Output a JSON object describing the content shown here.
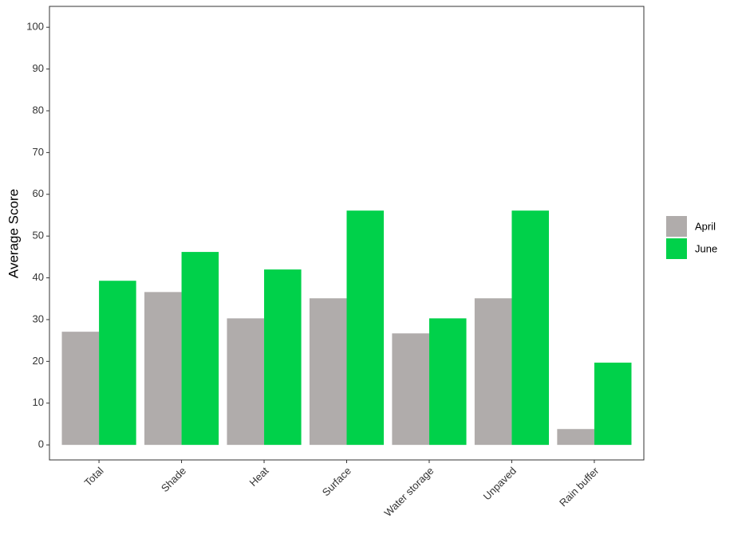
{
  "chart_data": {
    "type": "bar",
    "y_label": "Average Score",
    "categories": [
      "Total",
      "Shade",
      "Heat",
      "Surface",
      "Water storage",
      "Unpaved",
      "Rain buffer"
    ],
    "series": [
      {
        "name": "April",
        "color": "#b0acab",
        "values": [
          27.1,
          36.6,
          30.3,
          35.1,
          26.7,
          35.1,
          3.8
        ]
      },
      {
        "name": "June",
        "color": "#00d14a",
        "values": [
          39.3,
          46.2,
          42.0,
          56.1,
          30.3,
          56.1,
          19.7
        ]
      }
    ],
    "ylim": [
      -3.6,
      105
    ],
    "yticks": [
      0,
      10,
      20,
      30,
      40,
      50,
      60,
      70,
      80,
      90,
      100
    ],
    "grid": false,
    "legend": "right"
  }
}
